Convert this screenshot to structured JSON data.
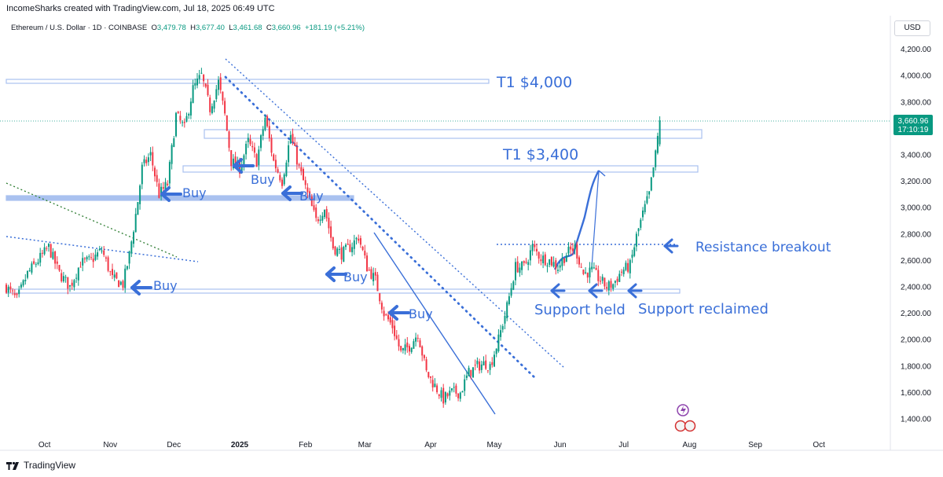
{
  "header": {
    "credit": "IncomeSharks created with TradingView.com, Jul 18, 2025 06:49 UTC",
    "symbol": "Ethereum / U.S. Dollar · 1D · COINBASE",
    "o_label": "O",
    "o_value": "3,479.78",
    "h_label": "H",
    "h_value": "3,677.40",
    "l_label": "L",
    "l_value": "3,461.68",
    "c_label": "C",
    "c_value": "3,660.96",
    "change": "+181.19 (+5.21%)",
    "currency": "USD"
  },
  "footer": {
    "brand": "TradingView"
  },
  "colors": {
    "up": "#089981",
    "down": "#f23645",
    "annotation": "#3a6fd8",
    "band": "#a9c1ef"
  },
  "chart_data": {
    "type": "candlestick",
    "yticks": [
      1400,
      1600,
      1800,
      2000,
      2200,
      2400,
      2600,
      2800,
      3000,
      3200,
      3400,
      3600,
      3800,
      4000,
      4200
    ],
    "ytick_labels": [
      "1,400.00",
      "1,600.00",
      "1,800.00",
      "2,000.00",
      "2,200.00",
      "2,400.00",
      "2,600.00",
      "2,800.00",
      "3,000.00",
      "3,200.00",
      "3,400.00",
      "3,600.00",
      "3,800.00",
      "4,000.00",
      "4,200.00"
    ],
    "xticks": [
      {
        "label": "Oct",
        "t": 18
      },
      {
        "label": "Nov",
        "t": 49
      },
      {
        "label": "Dec",
        "t": 79
      },
      {
        "label": "2025",
        "t": 110
      },
      {
        "label": "Feb",
        "t": 141
      },
      {
        "label": "Mar",
        "t": 169
      },
      {
        "label": "Apr",
        "t": 200
      },
      {
        "label": "May",
        "t": 230
      },
      {
        "label": "Jun",
        "t": 261
      },
      {
        "label": "Jul",
        "t": 291
      },
      {
        "label": "Aug",
        "t": 322
      },
      {
        "label": "Sep",
        "t": 353
      },
      {
        "label": "Oct",
        "t": 383
      }
    ],
    "last_price": "3,660.96",
    "countdown": "17:10:19",
    "anchors": [
      [
        0,
        2400
      ],
      [
        5,
        2300
      ],
      [
        10,
        2500
      ],
      [
        15,
        2600
      ],
      [
        20,
        2700
      ],
      [
        25,
        2500
      ],
      [
        30,
        2400
      ],
      [
        35,
        2580
      ],
      [
        40,
        2600
      ],
      [
        45,
        2680
      ],
      [
        50,
        2460
      ],
      [
        55,
        2420
      ],
      [
        58,
        2640
      ],
      [
        62,
        3050
      ],
      [
        64,
        3300
      ],
      [
        68,
        3400
      ],
      [
        72,
        3100
      ],
      [
        76,
        3180
      ],
      [
        80,
        3700
      ],
      [
        84,
        3600
      ],
      [
        88,
        3900
      ],
      [
        92,
        4000
      ],
      [
        96,
        3750
      ],
      [
        100,
        3950
      ],
      [
        103,
        3700
      ],
      [
        106,
        3350
      ],
      [
        110,
        3300
      ],
      [
        114,
        3500
      ],
      [
        118,
        3350
      ],
      [
        122,
        3680
      ],
      [
        126,
        3350
      ],
      [
        130,
        3200
      ],
      [
        134,
        3550
      ],
      [
        138,
        3300
      ],
      [
        142,
        3100
      ],
      [
        146,
        2900
      ],
      [
        150,
        3000
      ],
      [
        154,
        2700
      ],
      [
        158,
        2650
      ],
      [
        162,
        2700
      ],
      [
        166,
        2780
      ],
      [
        170,
        2550
      ],
      [
        174,
        2450
      ],
      [
        178,
        2200
      ],
      [
        182,
        2100
      ],
      [
        186,
        1900
      ],
      [
        190,
        1950
      ],
      [
        194,
        2050
      ],
      [
        198,
        1750
      ],
      [
        202,
        1650
      ],
      [
        206,
        1550
      ],
      [
        210,
        1600
      ],
      [
        214,
        1600
      ],
      [
        218,
        1750
      ],
      [
        222,
        1800
      ],
      [
        226,
        1820
      ],
      [
        228,
        1800
      ],
      [
        232,
        2000
      ],
      [
        236,
        2250
      ],
      [
        240,
        2550
      ],
      [
        244,
        2550
      ],
      [
        248,
        2700
      ],
      [
        252,
        2620
      ],
      [
        256,
        2600
      ],
      [
        260,
        2550
      ],
      [
        264,
        2650
      ],
      [
        268,
        2700
      ],
      [
        272,
        2500
      ],
      [
        276,
        2520
      ],
      [
        280,
        2450
      ],
      [
        283,
        2400
      ],
      [
        286,
        2420
      ],
      [
        290,
        2520
      ],
      [
        294,
        2560
      ],
      [
        297,
        2780
      ],
      [
        300,
        2950
      ],
      [
        303,
        3100
      ],
      [
        306,
        3400
      ],
      [
        308,
        3661
      ]
    ],
    "annotations": {
      "t1_top": "T1 $4,000",
      "t1_mid": "T1 $3,400",
      "buy_1": "Buy",
      "buy_2": "Buy",
      "buy_3": "Buy",
      "buy_4": "Buy",
      "buy_5": "Buy",
      "buy_6": "Buy",
      "support_held": "Support held",
      "support_reclaimed": "Support reclaimed",
      "resistance_breakout": "Resistance breakout"
    }
  }
}
